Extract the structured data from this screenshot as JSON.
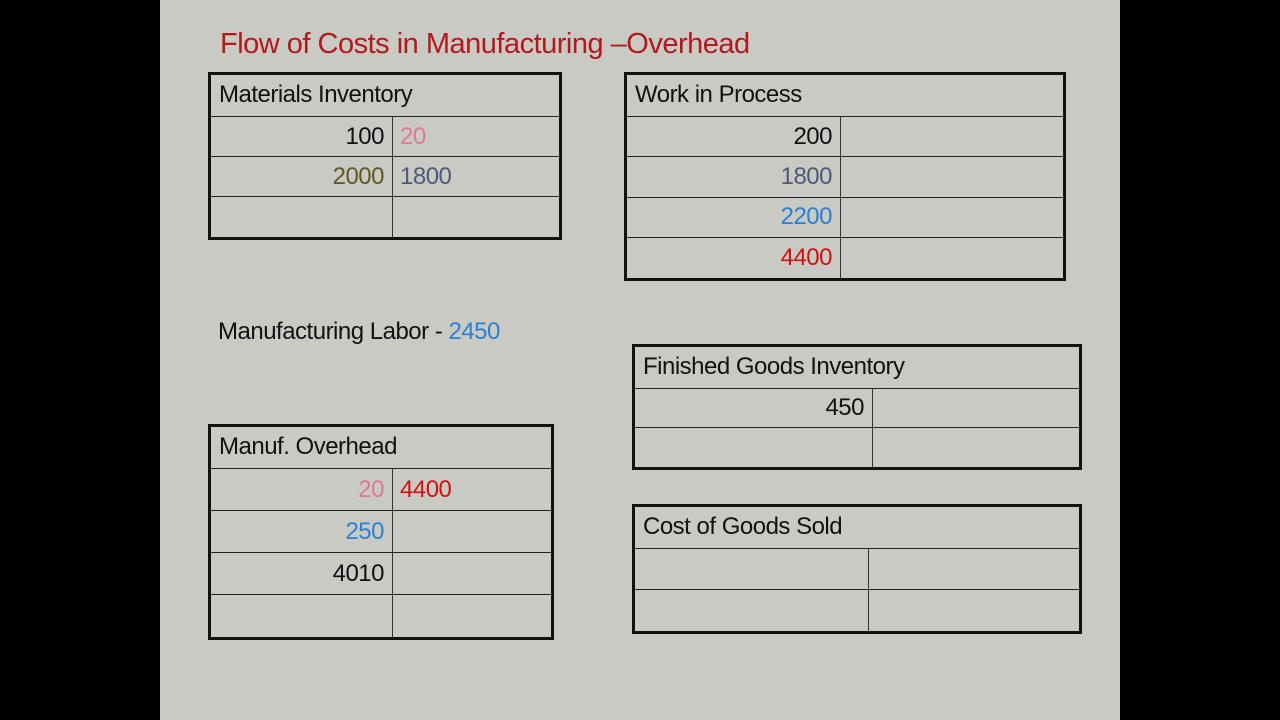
{
  "title": "Flow of Costs in Manufacturing –Overhead",
  "labor": {
    "label": "Manufacturing Labor - ",
    "value": "2450"
  },
  "colors": {
    "title": "#b3181c",
    "black": "#111111",
    "pink": "#e0789a",
    "olive": "#5c5a22",
    "slate": "#55557a",
    "blue": "#2a80d2",
    "red": "#d01010"
  },
  "accounts": [
    {
      "id": "materials-inventory",
      "title": "Materials Inventory",
      "rows": [
        [
          {
            "v": "100",
            "c": "black"
          },
          {
            "v": "20",
            "c": "pink"
          }
        ],
        [
          {
            "v": "2000",
            "c": "olive"
          },
          {
            "v": "1800",
            "c": "slate"
          }
        ],
        [
          {
            "v": "",
            "c": "black"
          },
          {
            "v": "",
            "c": "black"
          }
        ]
      ]
    },
    {
      "id": "work-in-process",
      "title": "Work in Process",
      "rows": [
        [
          {
            "v": "200",
            "c": "black"
          },
          {
            "v": "",
            "c": "black"
          }
        ],
        [
          {
            "v": "1800",
            "c": "slate"
          },
          {
            "v": "",
            "c": "black"
          }
        ],
        [
          {
            "v": "2200",
            "c": "blue"
          },
          {
            "v": "",
            "c": "black"
          }
        ],
        [
          {
            "v": "4400",
            "c": "red"
          },
          {
            "v": "",
            "c": "black"
          }
        ]
      ]
    },
    {
      "id": "finished-goods-inventory",
      "title": "Finished Goods Inventory",
      "rows": [
        [
          {
            "v": "450",
            "c": "black"
          },
          {
            "v": "",
            "c": "black"
          }
        ],
        [
          {
            "v": "",
            "c": "black"
          },
          {
            "v": "",
            "c": "black"
          }
        ]
      ]
    },
    {
      "id": "manuf-overhead",
      "title": "Manuf. Overhead",
      "rows": [
        [
          {
            "v": "20",
            "c": "pink"
          },
          {
            "v": "4400",
            "c": "red"
          }
        ],
        [
          {
            "v": "250",
            "c": "blue"
          },
          {
            "v": "",
            "c": "black"
          }
        ],
        [
          {
            "v": "4010",
            "c": "black"
          },
          {
            "v": "",
            "c": "black"
          }
        ],
        [
          {
            "v": "",
            "c": "black"
          },
          {
            "v": "",
            "c": "black"
          }
        ]
      ]
    },
    {
      "id": "cost-of-goods-sold",
      "title": "Cost of Goods Sold",
      "rows": [
        [
          {
            "v": "",
            "c": "black"
          },
          {
            "v": "",
            "c": "black"
          }
        ],
        [
          {
            "v": "",
            "c": "black"
          },
          {
            "v": "",
            "c": "black"
          }
        ]
      ]
    }
  ]
}
